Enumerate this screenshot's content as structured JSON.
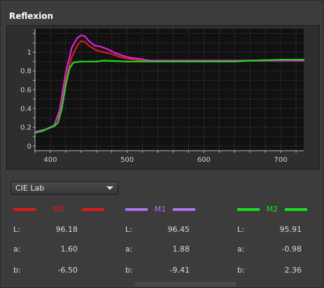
{
  "panel": {
    "title": "Reflexion"
  },
  "chart_data": {
    "type": "line",
    "xlim": [
      380,
      730
    ],
    "ylim": [
      -0.05,
      1.25
    ],
    "x_ticks": [
      400,
      500,
      600,
      700
    ],
    "y_ticks": [
      0,
      0.2,
      0.4,
      0.6,
      0.8,
      1
    ],
    "grid": true,
    "series": [
      {
        "color": "#e01818",
        "points": [
          [
            380,
            0.15
          ],
          [
            395,
            0.18
          ],
          [
            405,
            0.22
          ],
          [
            412,
            0.35
          ],
          [
            420,
            0.7
          ],
          [
            428,
            0.95
          ],
          [
            435,
            1.07
          ],
          [
            440,
            1.12
          ],
          [
            445,
            1.11
          ],
          [
            450,
            1.07
          ],
          [
            460,
            1.02
          ],
          [
            470,
            1.0
          ],
          [
            480,
            0.98
          ],
          [
            490,
            0.95
          ],
          [
            500,
            0.93
          ],
          [
            510,
            0.92
          ],
          [
            520,
            0.91
          ],
          [
            540,
            0.91
          ],
          [
            600,
            0.91
          ],
          [
            650,
            0.91
          ],
          [
            700,
            0.91
          ],
          [
            730,
            0.91
          ]
        ]
      },
      {
        "color": "#e020e0",
        "points": [
          [
            380,
            0.15
          ],
          [
            395,
            0.18
          ],
          [
            405,
            0.22
          ],
          [
            412,
            0.38
          ],
          [
            420,
            0.78
          ],
          [
            428,
            1.05
          ],
          [
            435,
            1.15
          ],
          [
            440,
            1.18
          ],
          [
            445,
            1.17
          ],
          [
            450,
            1.12
          ],
          [
            458,
            1.07
          ],
          [
            465,
            1.06
          ],
          [
            475,
            1.03
          ],
          [
            485,
            0.99
          ],
          [
            495,
            0.96
          ],
          [
            505,
            0.94
          ],
          [
            515,
            0.93
          ],
          [
            530,
            0.91
          ],
          [
            560,
            0.91
          ],
          [
            600,
            0.91
          ],
          [
            650,
            0.91
          ],
          [
            700,
            0.91
          ],
          [
            730,
            0.91
          ]
        ]
      },
      {
        "color": "#18e018",
        "points": [
          [
            380,
            0.14
          ],
          [
            390,
            0.16
          ],
          [
            398,
            0.19
          ],
          [
            405,
            0.21
          ],
          [
            410,
            0.25
          ],
          [
            415,
            0.4
          ],
          [
            420,
            0.65
          ],
          [
            425,
            0.83
          ],
          [
            430,
            0.89
          ],
          [
            440,
            0.9
          ],
          [
            460,
            0.9
          ],
          [
            470,
            0.91
          ],
          [
            500,
            0.9
          ],
          [
            550,
            0.9
          ],
          [
            600,
            0.9
          ],
          [
            640,
            0.9
          ],
          [
            660,
            0.91
          ],
          [
            700,
            0.92
          ],
          [
            730,
            0.92
          ]
        ]
      }
    ]
  },
  "mode_select": {
    "value": "CIE Lab"
  },
  "measurements": [
    {
      "name": "M0",
      "color": "#e01818",
      "L_label": "L:",
      "a_label": "a:",
      "b_label": "b:",
      "L": "96.18",
      "a": "1.60",
      "b": "-6.50"
    },
    {
      "name": "M1",
      "color": "#b070f0",
      "L_label": "L:",
      "a_label": "a:",
      "b_label": "b:",
      "L": "96.45",
      "a": "1.88",
      "b": "-9.41"
    },
    {
      "name": "M2",
      "color": "#18e018",
      "L_label": "L:",
      "a_label": "a:",
      "b_label": "b:",
      "L": "95.91",
      "a": "-0.98",
      "b": "2.36"
    }
  ]
}
